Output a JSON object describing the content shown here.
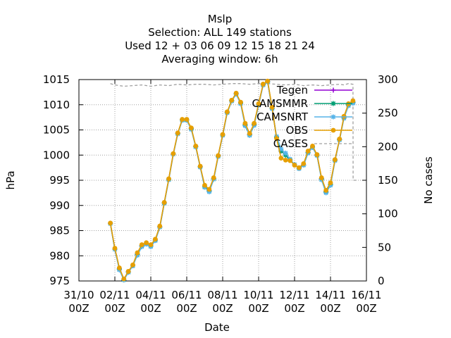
{
  "chart_data": {
    "type": "line",
    "title_lines": [
      "Mslp",
      "Selection: ALL     149 stations",
      "Used  12 + 03 06 09 12 15 18 21 24",
      "Averaging window:  6h"
    ],
    "xlabel": "Date",
    "ylabel": "hPa",
    "y2label": "No cases",
    "xlim_days": [
      0,
      16
    ],
    "ylim": [
      975,
      1015
    ],
    "y2lim": [
      0,
      300
    ],
    "x_ticks": [
      {
        "day": 0,
        "line1": "31/10",
        "line2": "00Z"
      },
      {
        "day": 2,
        "line1": "02/11",
        "line2": "00Z"
      },
      {
        "day": 4,
        "line1": "04/11",
        "line2": "00Z"
      },
      {
        "day": 6,
        "line1": "06/11",
        "line2": "00Z"
      },
      {
        "day": 8,
        "line1": "08/11",
        "line2": "00Z"
      },
      {
        "day": 10,
        "line1": "10/11",
        "line2": "00Z"
      },
      {
        "day": 12,
        "line1": "12/11",
        "line2": "00Z"
      },
      {
        "day": 14,
        "line1": "14/11",
        "line2": "00Z"
      },
      {
        "day": 16,
        "line1": "16/11",
        "line2": "00Z"
      }
    ],
    "y_ticks": [
      975,
      980,
      985,
      990,
      995,
      1000,
      1005,
      1010,
      1015
    ],
    "y2_ticks": [
      0,
      50,
      100,
      150,
      200,
      250,
      300
    ],
    "legend_position": "top-right",
    "x_days": [
      1.75,
      2.0,
      2.25,
      2.5,
      2.75,
      3.0,
      3.25,
      3.5,
      3.75,
      4.0,
      4.25,
      4.5,
      4.75,
      5.0,
      5.25,
      5.5,
      5.75,
      6.0,
      6.25,
      6.5,
      6.75,
      7.0,
      7.25,
      7.5,
      7.75,
      8.0,
      8.25,
      8.5,
      8.75,
      9.0,
      9.25,
      9.5,
      9.75,
      10.0,
      10.25,
      10.5,
      10.75,
      11.0,
      11.25,
      11.5,
      11.75,
      12.0,
      12.25,
      12.5,
      12.75,
      13.0,
      13.25,
      13.5,
      13.75,
      14.0,
      14.25,
      14.5,
      14.75,
      15.0,
      15.25
    ],
    "series": [
      {
        "name": "Tegen",
        "color": "#9400d3",
        "marker": "plus",
        "values": [
          986.4,
          981.3,
          977.4,
          975.2,
          976.8,
          978.0,
          980.3,
          982.0,
          982.4,
          982.0,
          983.1,
          985.7,
          990.5,
          995.2,
          1000.2,
          1004.3,
          1007.0,
          1007.0,
          1005.3,
          1001.7,
          997.7,
          993.7,
          992.9,
          995.3,
          999.8,
          1004.0,
          1008.5,
          1010.8,
          1012.2,
          1010.4,
          1006.0,
          1004.1,
          1006.1,
          1010.1,
          1014.0,
          1014.6,
          1009.3,
          1003.5,
          1000.8,
          1000.0,
          999.0,
          998.1,
          997.4,
          998.0,
          1000.5,
          1001.6,
          1000.0,
          995.3,
          992.7,
          994.2,
          999.0,
          1003.1,
          1007.5,
          1010.0,
          1010.5
        ]
      },
      {
        "name": "CAMSMMR",
        "color": "#009e73",
        "marker": "star",
        "values": [
          986.4,
          981.3,
          977.4,
          975.2,
          976.8,
          978.0,
          980.3,
          982.0,
          982.4,
          982.0,
          983.1,
          985.7,
          990.5,
          995.2,
          1000.2,
          1004.3,
          1007.0,
          1007.0,
          1005.3,
          1001.7,
          997.7,
          993.7,
          992.9,
          995.3,
          999.8,
          1004.0,
          1008.5,
          1010.8,
          1012.2,
          1010.4,
          1006.0,
          1004.1,
          1006.1,
          1010.1,
          1014.0,
          1014.6,
          1009.3,
          1003.5,
          1000.8,
          1000.0,
          999.0,
          998.1,
          997.4,
          998.0,
          1000.5,
          1001.6,
          1000.0,
          995.3,
          992.7,
          994.2,
          999.0,
          1003.1,
          1007.5,
          1010.0,
          1010.5
        ]
      },
      {
        "name": "CAMSNRT",
        "color": "#56b4e9",
        "marker": "star",
        "values": [
          986.4,
          981.3,
          977.2,
          975.2,
          976.7,
          978.0,
          980.1,
          981.8,
          982.3,
          981.8,
          983.0,
          985.7,
          990.4,
          995.1,
          1000.2,
          1004.2,
          1006.9,
          1006.9,
          1005.1,
          1001.6,
          997.6,
          993.6,
          992.7,
          995.2,
          999.7,
          1003.9,
          1008.4,
          1010.7,
          1012.1,
          1010.2,
          1005.8,
          1003.9,
          1005.9,
          1009.9,
          1013.9,
          1014.5,
          1009.2,
          1003.7,
          1001.2,
          1000.4,
          999.2,
          998.1,
          997.3,
          998.0,
          1000.4,
          1001.5,
          999.9,
          995.1,
          992.5,
          994.0,
          998.9,
          1003.0,
          1007.3,
          1009.8,
          1010.3
        ]
      },
      {
        "name": "OBS",
        "color": "#e69f00",
        "marker": "dot",
        "values": [
          986.5,
          981.5,
          977.6,
          975.4,
          976.9,
          978.2,
          980.6,
          982.2,
          982.6,
          982.2,
          983.3,
          985.9,
          990.6,
          995.3,
          1000.3,
          1004.4,
          1007.1,
          1007.1,
          1005.4,
          1001.8,
          997.8,
          994.0,
          993.2,
          995.5,
          999.9,
          1004.1,
          1008.6,
          1010.9,
          1012.3,
          1010.5,
          1006.3,
          1004.3,
          1006.3,
          1010.2,
          1014.1,
          1014.7,
          1009.5,
          1003.3,
          999.4,
          999.0,
          998.9,
          998.0,
          997.5,
          998.3,
          1000.8,
          1001.8,
          1000.1,
          995.5,
          993.0,
          994.5,
          999.1,
          1003.2,
          1007.7,
          1010.2,
          1010.8
        ]
      }
    ],
    "cases_series": {
      "name": "CASES",
      "color": "#a0a0a0",
      "style": "dashed",
      "x_days": [
        1.75,
        2.0,
        2.5,
        3.0,
        3.5,
        4.0,
        4.5,
        5.0,
        5.5,
        6.0,
        6.5,
        7.0,
        7.5,
        8.0,
        8.5,
        9.0,
        9.5,
        10.0,
        10.5,
        11.0,
        11.5,
        12.0,
        12.5,
        13.0,
        13.5,
        14.0,
        14.5,
        14.75,
        15.0,
        15.25,
        15.26,
        15.5
      ],
      "values": [
        294,
        292,
        290,
        291,
        292,
        290,
        292,
        291,
        293,
        292,
        293,
        293,
        292,
        293,
        294,
        294,
        293,
        294,
        294,
        293,
        292,
        293,
        291,
        292,
        291,
        292,
        293,
        292,
        294,
        293,
        150,
        150
      ]
    }
  }
}
